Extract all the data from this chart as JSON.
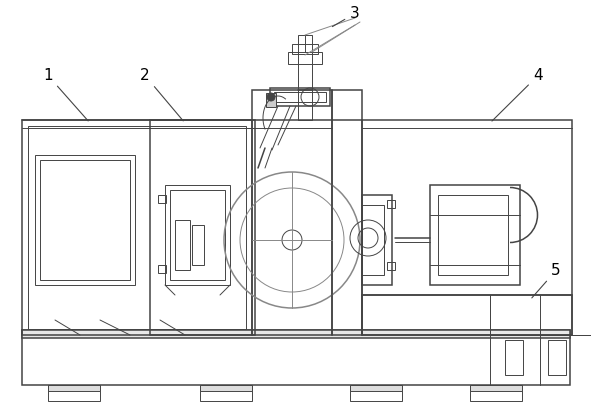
{
  "fig_width": 5.91,
  "fig_height": 4.11,
  "dpi": 100,
  "bg_color": "#ffffff",
  "lc": "#444444",
  "lc2": "#888888",
  "lw": 0.7,
  "lw2": 1.1,
  "label_fontsize": 11
}
